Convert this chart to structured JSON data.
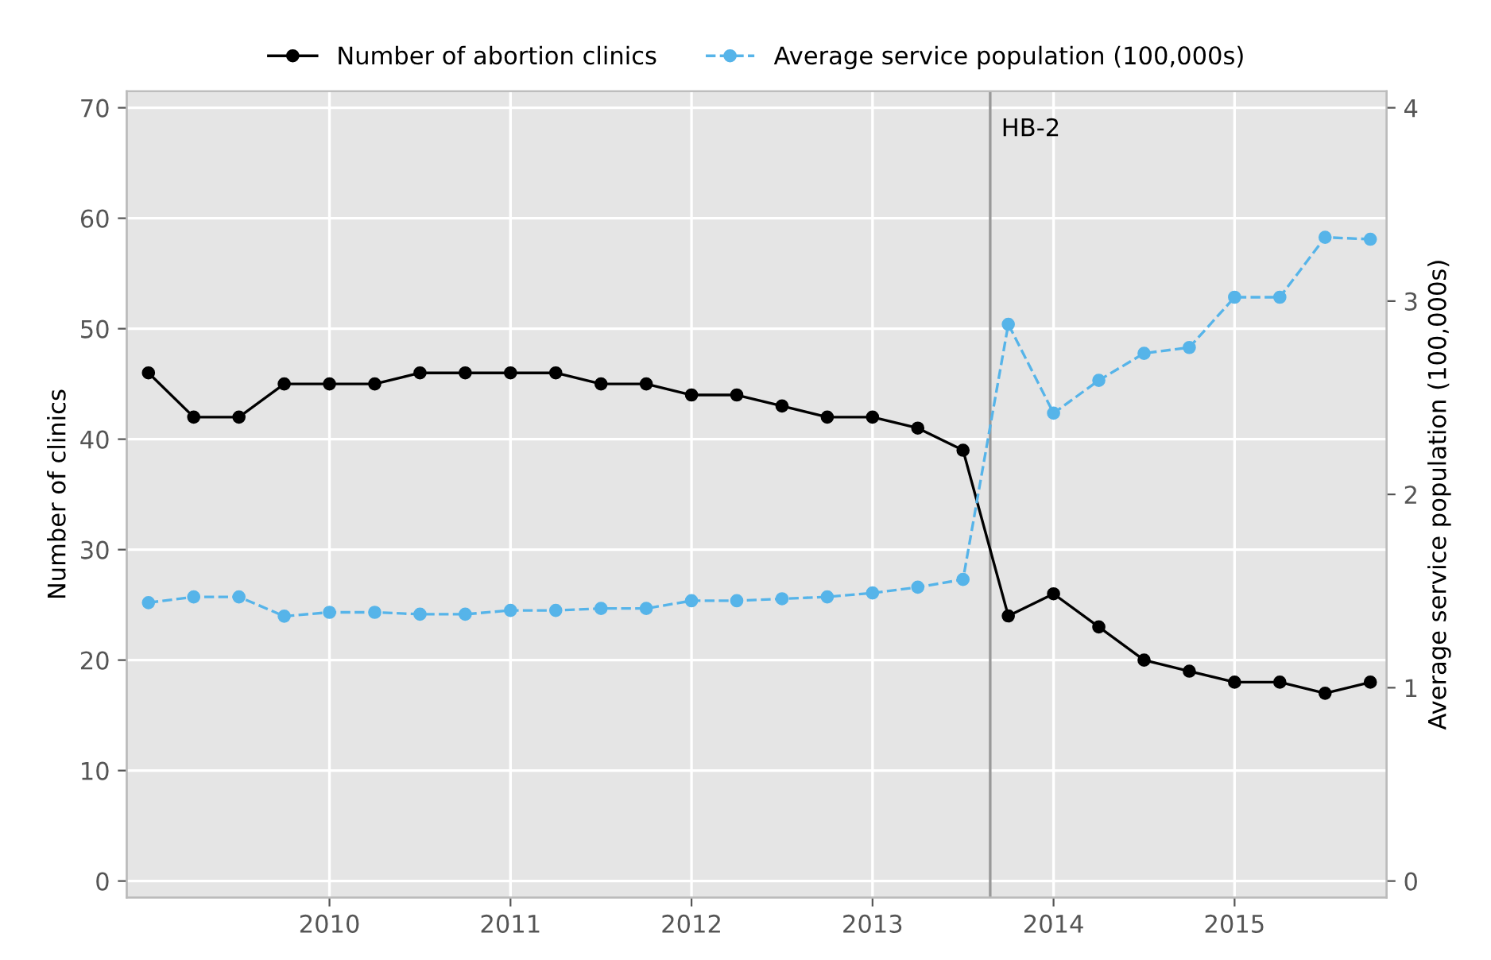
{
  "chart_data": {
    "type": "line",
    "xlabel": null,
    "ylabel": "Number of clinics",
    "y2label": "Average service population (100,000s)",
    "x": [
      2009.0,
      2009.25,
      2009.5,
      2009.75,
      2010.0,
      2010.25,
      2010.5,
      2010.75,
      2011.0,
      2011.25,
      2011.5,
      2011.75,
      2012.0,
      2012.25,
      2012.5,
      2012.75,
      2013.0,
      2013.25,
      2013.5,
      2013.75,
      2014.0,
      2014.25,
      2014.5,
      2014.75,
      2015.0,
      2015.25,
      2015.5,
      2015.75
    ],
    "series": [
      {
        "name": "Number of abortion clinics",
        "color": "#000000",
        "marker": "circle",
        "line_style": "solid",
        "values": [
          46,
          42,
          42,
          45,
          45,
          45,
          46,
          46,
          46,
          46,
          45,
          45,
          44,
          44,
          43,
          42,
          42,
          41,
          39,
          24,
          26,
          23,
          20,
          19,
          18,
          18,
          17,
          18
        ]
      },
      {
        "name": "Average service population (100,000s)",
        "color": "#56b4e9",
        "marker": "circle",
        "line_style": "dashed",
        "axis": "y2",
        "values": [
          1.44,
          1.47,
          1.47,
          1.37,
          1.39,
          1.39,
          1.38,
          1.38,
          1.4,
          1.4,
          1.41,
          1.41,
          1.45,
          1.45,
          1.46,
          1.47,
          1.49,
          1.52,
          1.56,
          2.88,
          2.42,
          2.59,
          2.73,
          2.76,
          3.02,
          3.02,
          3.33,
          3.32
        ]
      }
    ],
    "xlim": [
      2008.88,
      2015.84
    ],
    "xticks": [
      {
        "value": 2010,
        "label": "2010"
      },
      {
        "value": 2011,
        "label": "2011"
      },
      {
        "value": 2012,
        "label": "2012"
      },
      {
        "value": 2013,
        "label": "2013"
      },
      {
        "value": 2014,
        "label": "2014"
      },
      {
        "value": 2015,
        "label": "2015"
      }
    ],
    "ylim": [
      -1.5,
      71.5
    ],
    "yticks": [
      0,
      10,
      20,
      30,
      40,
      50,
      60,
      70
    ],
    "y2lim": [
      -0.0857,
      4.0857
    ],
    "y2ticks": [
      0,
      1,
      2,
      3,
      4
    ],
    "ref_lines": [
      {
        "axis": "x",
        "value": 2013.65,
        "label": "HB-2",
        "color": "#999999"
      }
    ],
    "grid": true,
    "legend": "top"
  }
}
